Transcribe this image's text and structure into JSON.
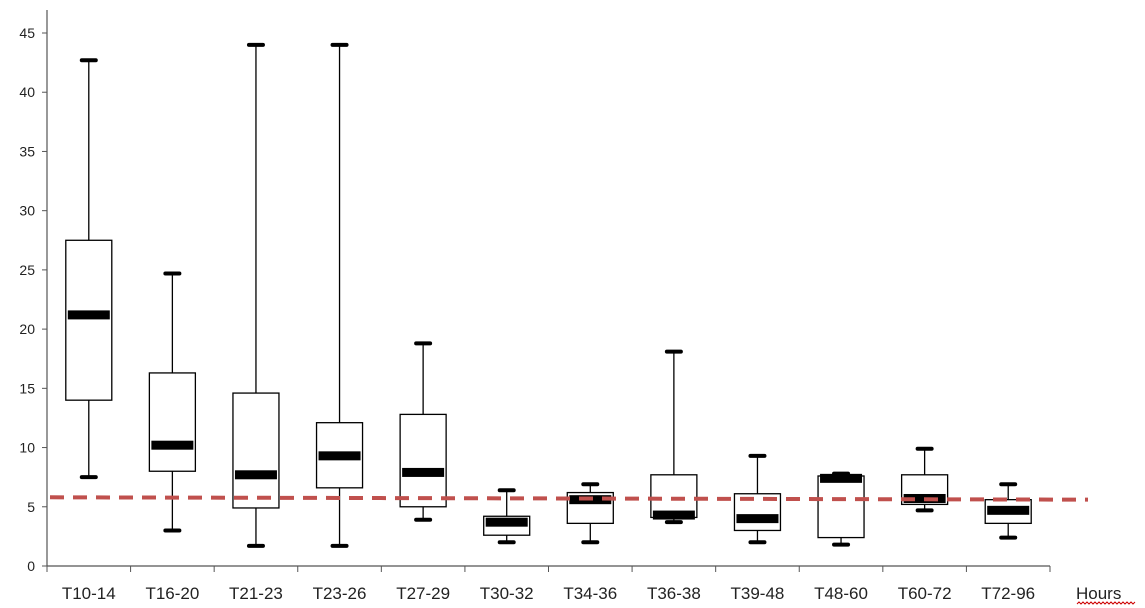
{
  "chart_data": {
    "type": "box",
    "title": "",
    "xlabel": "Hours",
    "ylabel": "",
    "ylim": [
      0,
      45
    ],
    "yticks": [
      0,
      5,
      10,
      15,
      20,
      25,
      30,
      35,
      40,
      45
    ],
    "grid": false,
    "legend": "none",
    "categories": [
      "T10-14",
      "T16-20",
      "T21-23",
      "T23-26",
      "T27-29",
      "T30-32",
      "T34-36",
      "T36-38",
      "T39-48",
      "T48-60",
      "T60-72",
      "T72-96"
    ],
    "boxes": [
      {
        "min": 7.5,
        "q1": 14,
        "median": 21.2,
        "q3": 27.5,
        "max": 42.7
      },
      {
        "min": 3,
        "q1": 8,
        "median": 10.2,
        "q3": 16.3,
        "max": 24.7
      },
      {
        "min": 1.7,
        "q1": 4.9,
        "median": 7.7,
        "q3": 14.6,
        "max": 44
      },
      {
        "min": 1.7,
        "q1": 6.6,
        "median": 9.3,
        "q3": 12.1,
        "max": 44
      },
      {
        "min": 3.9,
        "q1": 5,
        "median": 7.9,
        "q3": 12.8,
        "max": 18.8
      },
      {
        "min": 2,
        "q1": 2.6,
        "median": 3.7,
        "q3": 4.2,
        "max": 6.4
      },
      {
        "min": 2,
        "q1": 3.6,
        "median": 5.6,
        "q3": 6.2,
        "max": 6.9
      },
      {
        "min": 3.7,
        "q1": 4.1,
        "median": 4.3,
        "q3": 7.7,
        "max": 18.1
      },
      {
        "min": 2,
        "q1": 3,
        "median": 4,
        "q3": 6.1,
        "max": 9.3
      },
      {
        "min": 1.8,
        "q1": 2.4,
        "median": 7.4,
        "q3": 7.6,
        "max": 7.8
      },
      {
        "min": 4.7,
        "q1": 5.2,
        "median": 5.7,
        "q3": 7.7,
        "max": 9.9
      },
      {
        "min": 2.4,
        "q1": 3.6,
        "median": 4.7,
        "q3": 5.6,
        "max": 6.9
      }
    ],
    "reference_line": {
      "y_start": 5.8,
      "y_end": 5.6,
      "style": "dashed"
    },
    "colors": {
      "reference_line": "#c0504d",
      "box_stroke": "#000000",
      "axis": "#555555"
    }
  }
}
